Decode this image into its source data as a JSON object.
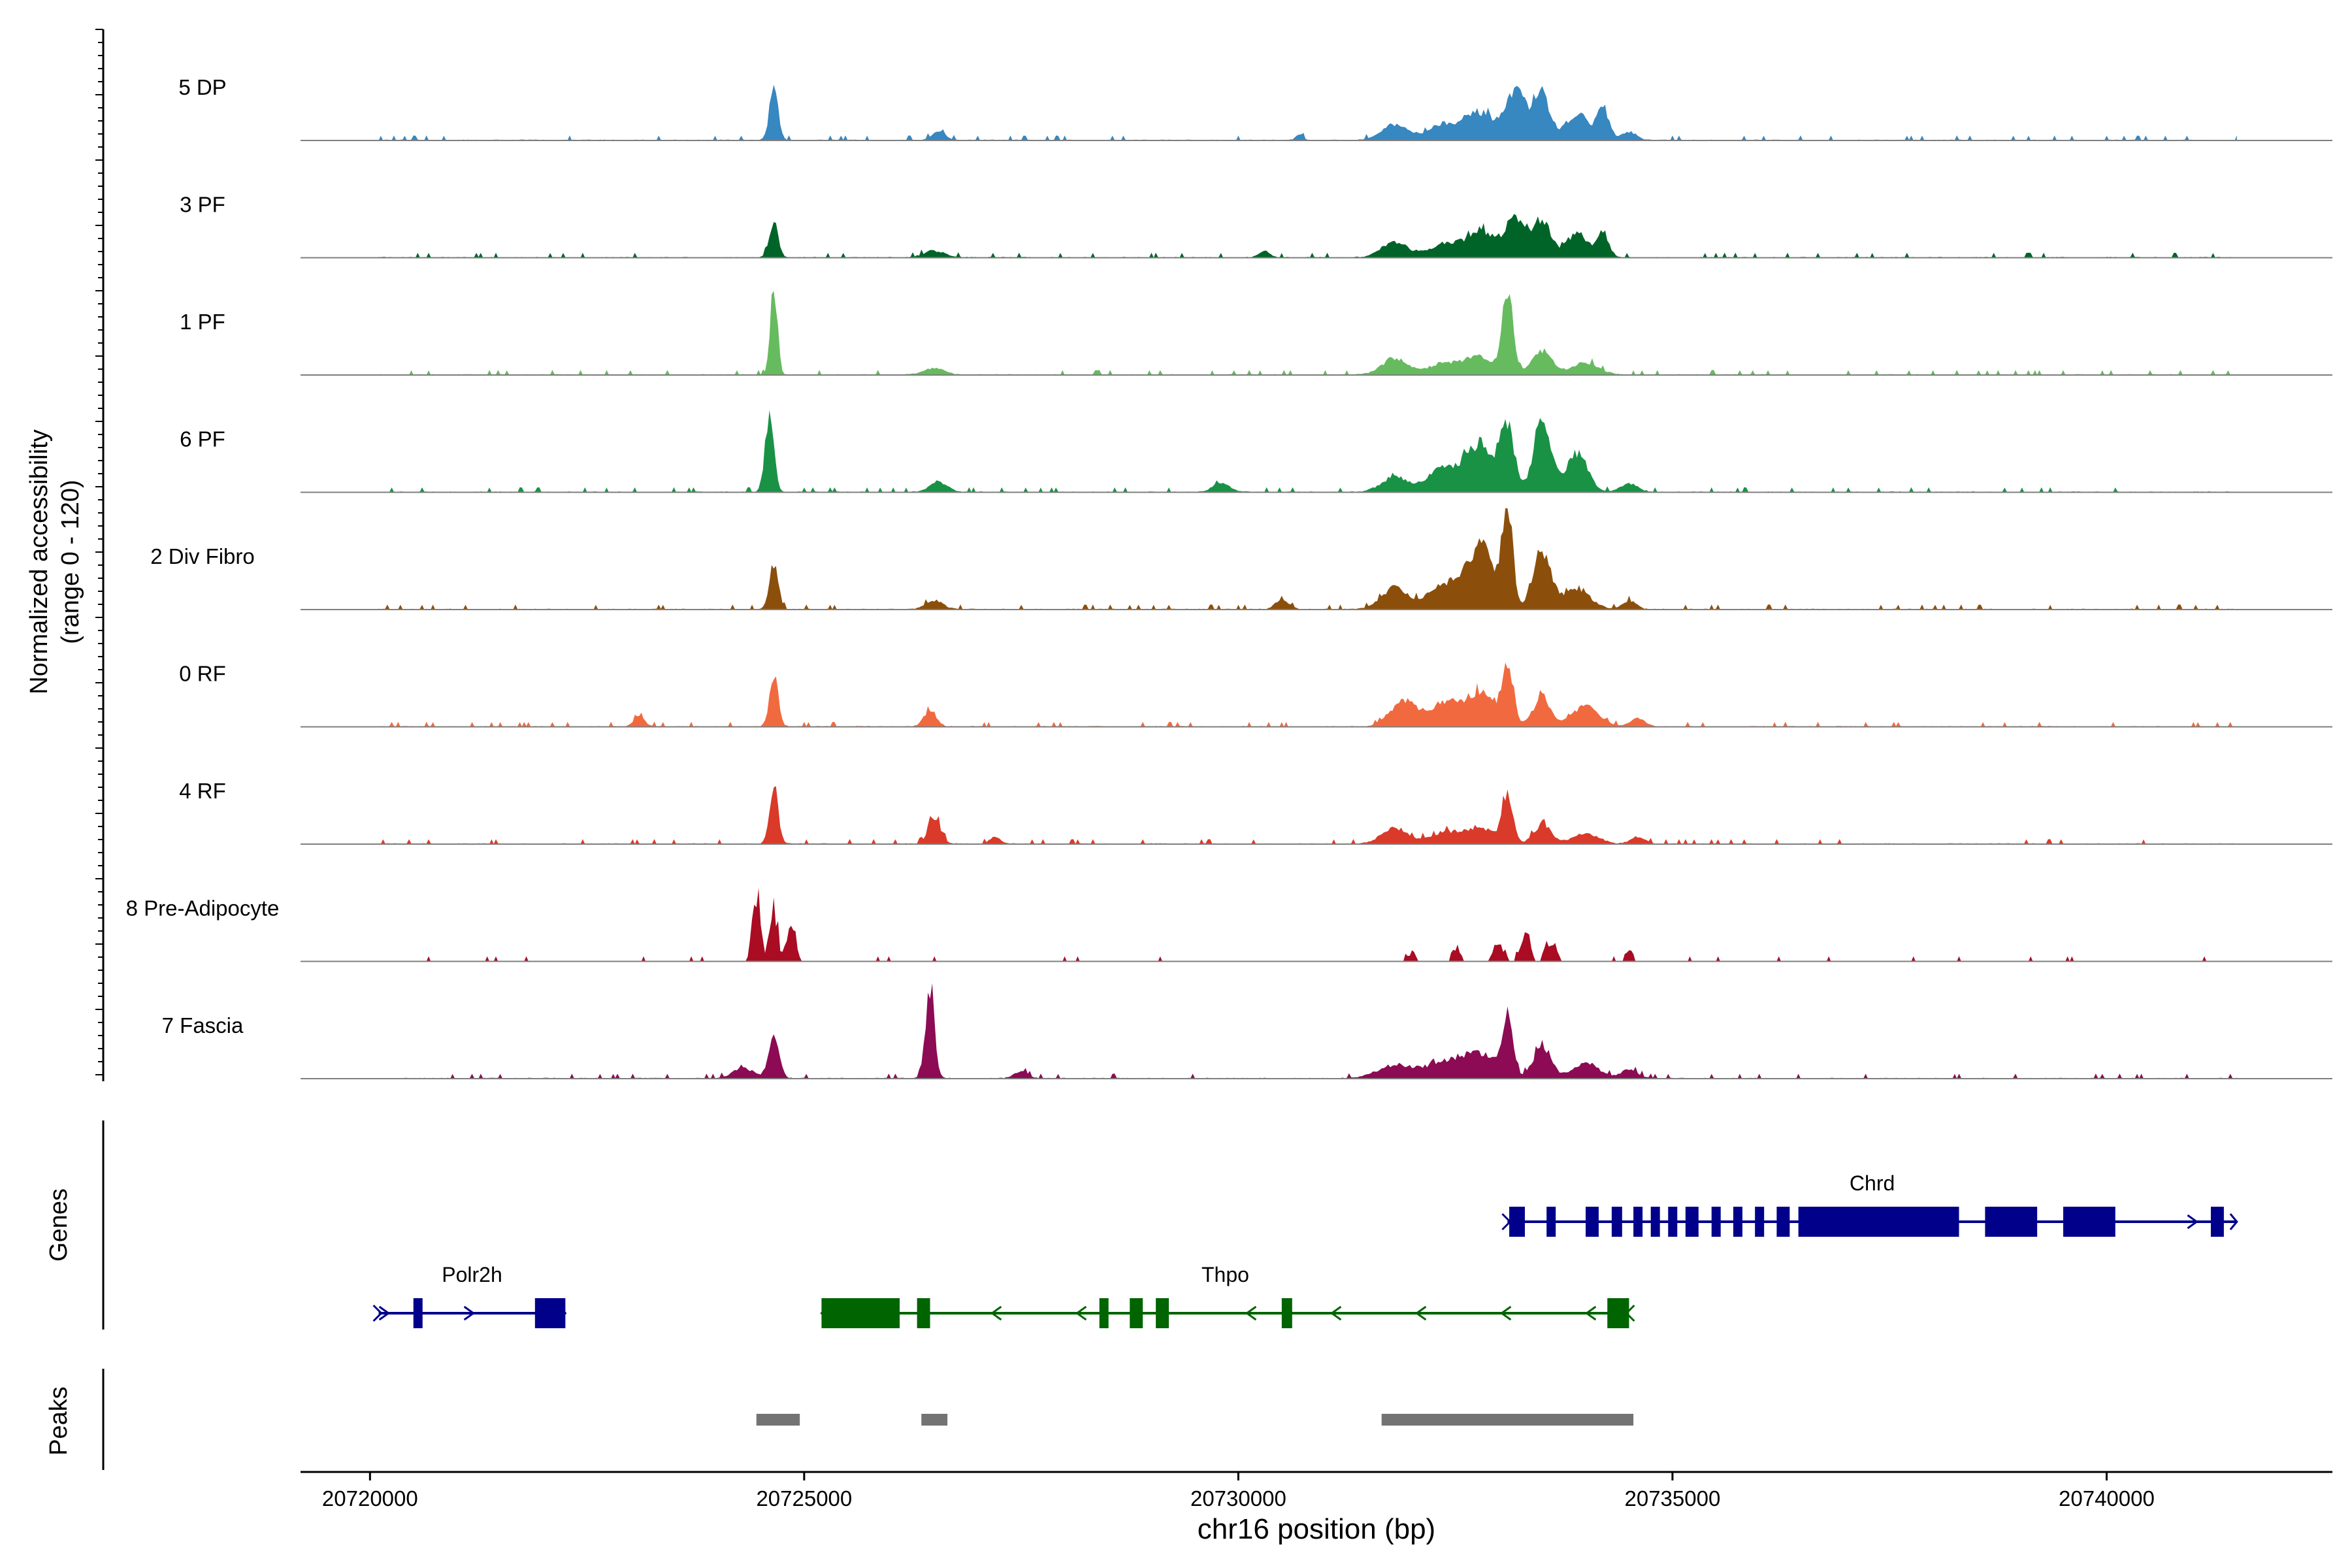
{
  "chart_data": {
    "type": "area",
    "title": "",
    "ylabel": "Normalized accessibility\n(range 0 - 120)",
    "xlabel": "chr16 position (bp)",
    "xlim": [
      20719200,
      20742600
    ],
    "ylim": [
      0,
      120
    ],
    "x_ticks": [
      20720000,
      20725000,
      20730000,
      20735000,
      20740000
    ],
    "x_tick_labels": [
      "20720000",
      "20725000",
      "20730000",
      "20735000",
      "20740000"
    ],
    "panel_labels": {
      "genes": "Genes",
      "peaks": "Peaks"
    },
    "tracks": [
      {
        "name": "5 DP",
        "color": "#3787c0",
        "peaks": [
          [
            20724650,
            60,
            50
          ],
          [
            20726550,
            10,
            80
          ],
          [
            20730700,
            7,
            40
          ],
          [
            20731800,
            18,
            150
          ],
          [
            20732400,
            20,
            200
          ],
          [
            20732800,
            30,
            150
          ],
          [
            20733200,
            55,
            120
          ],
          [
            20733500,
            50,
            100
          ],
          [
            20733900,
            32,
            120
          ],
          [
            20734200,
            38,
            70
          ],
          [
            20734500,
            10,
            80
          ]
        ]
      },
      {
        "name": "3 PF",
        "color": "#006428",
        "peaks": [
          [
            20724650,
            42,
            50
          ],
          [
            20726500,
            8,
            120
          ],
          [
            20730300,
            8,
            60
          ],
          [
            20731800,
            18,
            150
          ],
          [
            20732400,
            16,
            200
          ],
          [
            20732800,
            30,
            150
          ],
          [
            20733200,
            48,
            120
          ],
          [
            20733500,
            42,
            100
          ],
          [
            20733900,
            28,
            120
          ],
          [
            20734200,
            25,
            70
          ]
        ]
      },
      {
        "name": "1 PF",
        "color": "#66bb5f",
        "peaks": [
          [
            20724650,
            110,
            40
          ],
          [
            20726500,
            8,
            120
          ],
          [
            20731800,
            18,
            150
          ],
          [
            20732400,
            14,
            200
          ],
          [
            20732800,
            20,
            150
          ],
          [
            20733100,
            102,
            60
          ],
          [
            20733500,
            28,
            120
          ],
          [
            20734000,
            14,
            150
          ]
        ]
      },
      {
        "name": "6 PF",
        "color": "#199246",
        "peaks": [
          [
            20724600,
            90,
            50
          ],
          [
            20726550,
            12,
            100
          ],
          [
            20729800,
            10,
            100
          ],
          [
            20731800,
            18,
            150
          ],
          [
            20732400,
            30,
            200
          ],
          [
            20732800,
            55,
            150
          ],
          [
            20733100,
            75,
            80
          ],
          [
            20733500,
            82,
            100
          ],
          [
            20733900,
            45,
            120
          ],
          [
            20734500,
            10,
            100
          ]
        ]
      },
      {
        "name": "2 Div Fibro",
        "color": "#8b4f0b",
        "peaks": [
          [
            20724650,
            55,
            50
          ],
          [
            20726500,
            10,
            100
          ],
          [
            20730500,
            10,
            80
          ],
          [
            20731800,
            25,
            150
          ],
          [
            20732400,
            30,
            200
          ],
          [
            20732800,
            70,
            150
          ],
          [
            20733100,
            120,
            60
          ],
          [
            20733500,
            70,
            100
          ],
          [
            20733900,
            25,
            150
          ],
          [
            20734500,
            10,
            80
          ]
        ]
      },
      {
        "name": "0 RF",
        "color": "#f16a3f",
        "peaks": [
          [
            20724650,
            60,
            50
          ],
          [
            20726450,
            20,
            70
          ],
          [
            20723100,
            12,
            60
          ],
          [
            20731900,
            30,
            150
          ],
          [
            20732400,
            28,
            200
          ],
          [
            20732800,
            36,
            150
          ],
          [
            20733100,
            65,
            70
          ],
          [
            20733500,
            35,
            100
          ],
          [
            20734000,
            25,
            150
          ],
          [
            20734600,
            10,
            80
          ]
        ]
      },
      {
        "name": "4 RF",
        "color": "#d93a29",
        "peaks": [
          [
            20724650,
            70,
            50
          ],
          [
            20726500,
            32,
            70
          ],
          [
            20727200,
            8,
            60
          ],
          [
            20731800,
            18,
            150
          ],
          [
            20732400,
            14,
            200
          ],
          [
            20732800,
            18,
            150
          ],
          [
            20733100,
            58,
            60
          ],
          [
            20733500,
            22,
            100
          ],
          [
            20734000,
            12,
            150
          ],
          [
            20734600,
            8,
            80
          ]
        ]
      },
      {
        "name": "8 Pre-Adipocyte",
        "color": "#a90c23",
        "peaks": [
          [
            20724450,
            90,
            45
          ],
          [
            20724650,
            80,
            45
          ],
          [
            20724850,
            60,
            45
          ],
          [
            20733000,
            28,
            60
          ],
          [
            20733300,
            40,
            60
          ],
          [
            20733600,
            32,
            60
          ],
          [
            20732500,
            16,
            60
          ],
          [
            20734500,
            14,
            60
          ],
          [
            20732000,
            12,
            60
          ]
        ]
      },
      {
        "name": "7 Fascia",
        "color": "#8c0b54",
        "peaks": [
          [
            20724650,
            50,
            60
          ],
          [
            20726450,
            110,
            50
          ],
          [
            20724300,
            12,
            120
          ],
          [
            20727500,
            8,
            80
          ],
          [
            20731800,
            15,
            200
          ],
          [
            20732400,
            18,
            250
          ],
          [
            20732800,
            25,
            200
          ],
          [
            20733100,
            70,
            60
          ],
          [
            20733500,
            40,
            100
          ],
          [
            20734000,
            18,
            150
          ],
          [
            20734500,
            10,
            100
          ]
        ]
      }
    ],
    "genes": [
      {
        "name": "Chrd",
        "strand": "+",
        "color": "#00008b",
        "start": 20733100,
        "end": 20741500,
        "exons": [
          [
            20733120,
            20733300
          ],
          [
            20733550,
            20733650
          ],
          [
            20734000,
            20734150
          ],
          [
            20734300,
            20734420
          ],
          [
            20734550,
            20734650
          ],
          [
            20734750,
            20734850
          ],
          [
            20734950,
            20735050
          ],
          [
            20735150,
            20735300
          ],
          [
            20735450,
            20735550
          ],
          [
            20735700,
            20735800
          ],
          [
            20735950,
            20736050
          ],
          [
            20736200,
            20736350
          ],
          [
            20736450,
            20738300
          ],
          [
            20738600,
            20739200
          ],
          [
            20739500,
            20740100
          ],
          [
            20741200,
            20741350
          ]
        ]
      },
      {
        "name": "Polr2h",
        "strand": "+",
        "color": "#00008b",
        "start": 20720100,
        "end": 20722250,
        "exons": [
          [
            20720500,
            20720600
          ],
          [
            20721900,
            20722250
          ]
        ]
      },
      {
        "name": "Thpo",
        "strand": "-",
        "color": "#006400",
        "start": 20725200,
        "end": 20734500,
        "exons": [
          [
            20725200,
            20726100
          ],
          [
            20726300,
            20726450
          ],
          [
            20728400,
            20728500
          ],
          [
            20728750,
            20728900
          ],
          [
            20729050,
            20729200
          ],
          [
            20730500,
            20730620
          ],
          [
            20734250,
            20734500
          ]
        ]
      }
    ],
    "peak_regions": [
      [
        20724450,
        20724950
      ],
      [
        20726350,
        20726650
      ],
      [
        20731650,
        20734550
      ]
    ]
  }
}
